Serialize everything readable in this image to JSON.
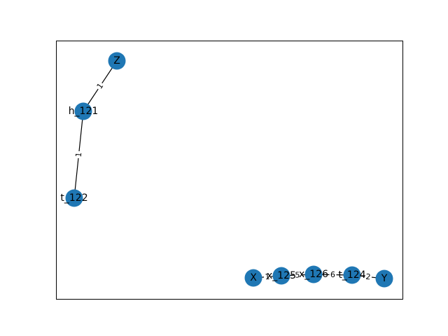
{
  "colors": {
    "node_fill": "#1f77b4",
    "edge": "#000000",
    "frame": "#000000",
    "background": "#ffffff"
  },
  "graph": {
    "nodes": [
      {
        "id": "Z",
        "label": "Z"
      },
      {
        "id": "h_121",
        "label": "h_121"
      },
      {
        "id": "t_122",
        "label": "t_122"
      },
      {
        "id": "X",
        "label": "X"
      },
      {
        "id": "x_125",
        "label": "x_125"
      },
      {
        "id": "x_126",
        "label": "x_126"
      },
      {
        "id": "t_124",
        "label": "t_124"
      },
      {
        "id": "Y",
        "label": "Y"
      }
    ],
    "edges": [
      {
        "source": "Z",
        "target": "h_121",
        "label": "1"
      },
      {
        "source": "h_121",
        "target": "t_122",
        "label": "1"
      },
      {
        "source": "X",
        "target": "x_125",
        "label": "1"
      },
      {
        "source": "x_125",
        "target": "x_126",
        "label": "5"
      },
      {
        "source": "x_126",
        "target": "t_124",
        "label": "6"
      },
      {
        "source": "t_124",
        "target": "Y",
        "label": "2"
      }
    ]
  }
}
